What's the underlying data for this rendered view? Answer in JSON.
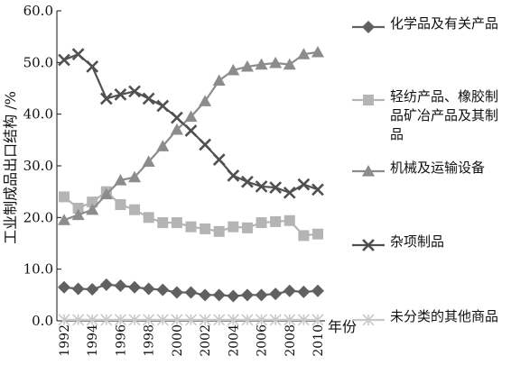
{
  "chart_data": {
    "type": "line",
    "title": "",
    "xlabel": "年份",
    "ylabel": "工业制成品出口结构 /%",
    "ylim": [
      0,
      60
    ],
    "y_ticks": [
      "0.0",
      "10.0",
      "20.0",
      "30.0",
      "40.0",
      "50.0",
      "60.0"
    ],
    "x_ticks": [
      "1992",
      "1994",
      "1996",
      "1998",
      "2000",
      "2002",
      "2004",
      "2006",
      "2008",
      "2010"
    ],
    "x": [
      1992,
      1993,
      1994,
      1995,
      1996,
      1997,
      1998,
      1999,
      2000,
      2001,
      2002,
      2003,
      2004,
      2005,
      2006,
      2007,
      2008,
      2009,
      2010
    ],
    "grid": false,
    "legend_position": "right",
    "series": [
      {
        "name": "化学品及有关产品",
        "marker": "diamond",
        "color": "#606060",
        "values": [
          6.5,
          6.2,
          6.1,
          7.0,
          6.8,
          6.5,
          6.2,
          6.0,
          5.5,
          5.5,
          5.0,
          5.0,
          4.8,
          5.0,
          5.0,
          5.2,
          5.8,
          5.6,
          5.8
        ]
      },
      {
        "name": "轻纺产品、橡胶制品矿冶产品及其制品",
        "marker": "square",
        "color": "#b4b4b4",
        "values": [
          24.0,
          21.8,
          23.0,
          25.0,
          22.5,
          21.5,
          20.0,
          19.0,
          19.0,
          18.2,
          17.8,
          17.3,
          18.2,
          18.0,
          19.0,
          19.2,
          19.4,
          16.5,
          16.8
        ]
      },
      {
        "name": "机械及运输设备",
        "marker": "triangle",
        "color": "#8c8c8c",
        "values": [
          19.5,
          20.5,
          21.5,
          24.5,
          27.2,
          27.8,
          30.8,
          33.8,
          37.0,
          39.5,
          42.5,
          46.5,
          48.5,
          49.2,
          49.6,
          49.9,
          49.6,
          51.6,
          52.0
        ]
      },
      {
        "name": "杂项制品",
        "marker": "x",
        "color": "#505050",
        "values": [
          50.5,
          51.6,
          49.2,
          43.0,
          43.8,
          44.4,
          43.0,
          41.6,
          39.3,
          36.8,
          34.1,
          31.2,
          28.1,
          26.9,
          26.0,
          25.8,
          24.8,
          26.4,
          25.4
        ]
      },
      {
        "name": "未分类的其他商品",
        "marker": "asterisk",
        "color": "#c8c8c8",
        "values": [
          0.2,
          0.2,
          0.2,
          0.2,
          0.2,
          0.2,
          0.2,
          0.2,
          0.2,
          0.2,
          0.2,
          0.2,
          0.2,
          0.2,
          0.2,
          0.2,
          0.2,
          0.2,
          0.2
        ]
      }
    ]
  }
}
